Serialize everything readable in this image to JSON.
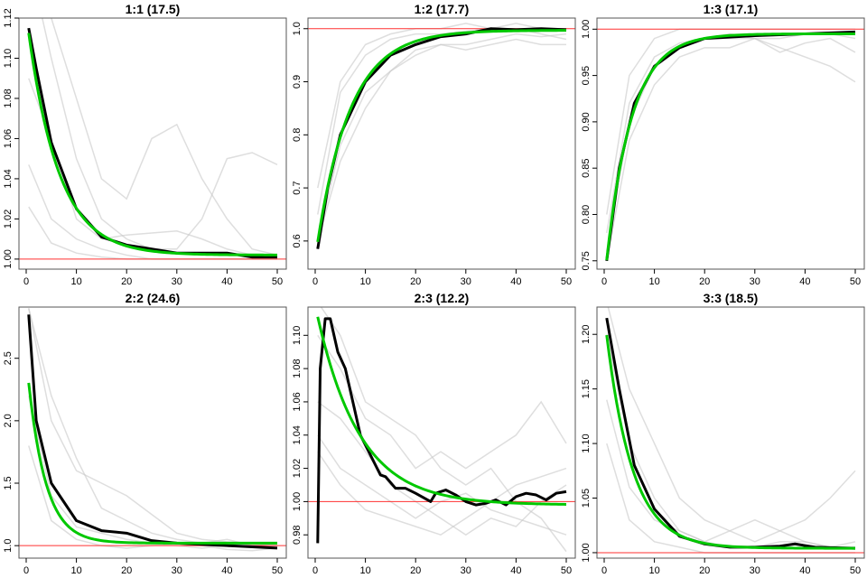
{
  "chart_data": [
    {
      "type": "line",
      "title": "1:1 (17.5)",
      "xlim": [
        0,
        50
      ],
      "ylim": [
        0.995,
        1.12
      ],
      "xticks": [
        "0",
        "10",
        "20",
        "30",
        "40",
        "50"
      ],
      "yticks": [
        "1.00",
        "1.02",
        "1.04",
        "1.06",
        "1.08",
        "1.10",
        "1.12"
      ],
      "ytick_values": [
        1.0,
        1.02,
        1.04,
        1.06,
        1.08,
        1.1,
        1.12
      ],
      "reference": 1.0,
      "mean": {
        "x": [
          0.5,
          2,
          5,
          10,
          15,
          20,
          25,
          30,
          35,
          40,
          45,
          50
        ],
        "y": [
          1.115,
          1.095,
          1.058,
          1.025,
          1.011,
          1.007,
          1.005,
          1.003,
          1.003,
          1.003,
          1.001,
          1.001
        ]
      },
      "fit": {
        "asymptote": 1.002,
        "amplitude": 0.12,
        "tau": 6.1
      },
      "samples": [
        [
          1.026,
          1.008,
          1.003,
          1.001,
          1.0,
          1.0,
          1.0,
          1.0,
          1.0,
          1.0,
          1.0
        ],
        [
          1.047,
          1.02,
          1.01,
          1.005,
          1.002,
          1.0,
          1.0,
          1.0,
          1.0,
          1.0,
          1.0
        ],
        [
          1.15,
          1.12,
          1.08,
          1.04,
          1.03,
          1.06,
          1.067,
          1.04,
          1.02,
          1.005,
          1.002
        ],
        [
          1.15,
          1.1,
          1.05,
          1.02,
          1.01,
          1.005,
          1.005,
          1.02,
          1.05,
          1.053,
          1.047
        ],
        [
          1.09,
          1.06,
          1.02,
          1.01,
          1.012,
          1.013,
          1.014,
          1.01,
          1.005,
          1.002,
          1.001
        ]
      ]
    },
    {
      "type": "line",
      "title": "1:2 (17.7)",
      "xlim": [
        0,
        50
      ],
      "ylim": [
        0.547,
        1.02
      ],
      "xticks": [
        "0",
        "10",
        "20",
        "30",
        "40",
        "50"
      ],
      "yticks": [
        "0.6",
        "0.7",
        "0.8",
        "0.9",
        "1.0"
      ],
      "ytick_values": [
        0.6,
        0.7,
        0.8,
        0.9,
        1.0
      ],
      "reference": 1.0,
      "mean": {
        "x": [
          0.5,
          2.5,
          5,
          10,
          15,
          20,
          25,
          30,
          35,
          40,
          45,
          50
        ],
        "y": [
          0.585,
          0.7,
          0.8,
          0.9,
          0.95,
          0.97,
          0.985,
          0.99,
          1.0,
          0.998,
          1.0,
          0.998
        ]
      },
      "fit": {
        "asymptote": 0.997,
        "amplitude": -0.43,
        "tau": 6.6
      },
      "samples": [
        [
          0.65,
          0.88,
          0.95,
          0.98,
          0.99,
          0.99,
          0.995,
          1.0,
          1.0,
          0.99,
          0.98
        ],
        [
          0.6,
          0.78,
          0.88,
          0.92,
          0.95,
          0.97,
          0.97,
          0.98,
          0.99,
          0.985,
          0.99
        ],
        [
          0.7,
          0.9,
          0.97,
          0.99,
          1.0,
          1.0,
          1.01,
          1.0,
          1.01,
          1.0,
          1.0
        ],
        [
          0.6,
          0.75,
          0.85,
          0.92,
          0.96,
          0.97,
          0.96,
          0.97,
          0.98,
          0.97,
          0.97
        ]
      ]
    },
    {
      "type": "line",
      "title": "1:3 (17.1)",
      "xlim": [
        0,
        50
      ],
      "ylim": [
        0.741,
        1.012
      ],
      "xticks": [
        "0",
        "10",
        "20",
        "30",
        "40",
        "50"
      ],
      "yticks": [
        "0.75",
        "0.80",
        "0.85",
        "0.90",
        "0.95",
        "1.00"
      ],
      "ytick_values": [
        0.75,
        0.8,
        0.85,
        0.9,
        0.95,
        1.0
      ],
      "reference": 1.0,
      "mean": {
        "x": [
          0.5,
          3,
          6,
          10,
          15,
          20,
          30,
          40,
          50
        ],
        "y": [
          0.75,
          0.85,
          0.92,
          0.96,
          0.98,
          0.99,
          0.993,
          0.995,
          0.997
        ]
      },
      "fit": {
        "asymptote": 0.995,
        "amplitude": -0.27,
        "tau": 5.0
      },
      "samples": [
        [
          0.76,
          0.9,
          0.96,
          0.98,
          0.99,
          0.99,
          0.99,
          0.98,
          0.97,
          0.96,
          0.943
        ],
        [
          0.8,
          0.95,
          0.99,
          1.0,
          1.0,
          1.0,
          1.0,
          1.0,
          1.0,
          1.0,
          1.0
        ],
        [
          0.75,
          0.88,
          0.94,
          0.97,
          0.98,
          0.98,
          0.99,
          0.975,
          0.985,
          0.99,
          0.975
        ],
        [
          0.78,
          0.92,
          0.97,
          0.985,
          0.99,
          0.995,
          0.99,
          0.99,
          0.995,
          0.995,
          0.99
        ]
      ]
    },
    {
      "type": "line",
      "title": "2:2 (24.6)",
      "xlim": [
        0,
        50
      ],
      "ylim": [
        0.9,
        2.91
      ],
      "xticks": [
        "0",
        "10",
        "20",
        "30",
        "40",
        "50"
      ],
      "yticks": [
        "1.0",
        "1.5",
        "2.0",
        "2.5"
      ],
      "ytick_values": [
        1.0,
        1.5,
        2.0,
        2.5
      ],
      "reference": 1.0,
      "mean": {
        "x": [
          0.5,
          2,
          5,
          10,
          15,
          20,
          25,
          30,
          35,
          40,
          45,
          50
        ],
        "y": [
          2.85,
          2.0,
          1.5,
          1.2,
          1.12,
          1.1,
          1.04,
          1.02,
          1.01,
          1.0,
          0.99,
          0.98
        ]
      },
      "fit": {
        "asymptote": 1.02,
        "amplitude": 1.48,
        "tau": 3.5
      },
      "samples": [
        [
          2.9,
          2.0,
          1.6,
          1.5,
          1.4,
          1.25,
          1.1,
          1.05,
          1.03,
          1.02,
          1.0
        ],
        [
          2.2,
          1.4,
          1.15,
          1.1,
          1.05,
          1.02,
          1.0,
          0.98,
          1.0,
          1.01,
          1.0
        ],
        [
          2.9,
          2.2,
          1.7,
          1.3,
          1.2,
          1.1,
          1.05,
          1.02,
          1.05,
          1.0,
          1.0
        ],
        [
          1.8,
          1.2,
          1.05,
          1.0,
          0.98,
          1.0,
          1.02,
          1.0,
          0.97,
          0.96,
          0.98
        ]
      ]
    },
    {
      "type": "line",
      "title": "2:3 (12.2)",
      "xlim": [
        0,
        50
      ],
      "ylim": [
        0.966,
        1.117
      ],
      "xticks": [
        "0",
        "10",
        "20",
        "30",
        "40",
        "50"
      ],
      "yticks": [
        "0.98",
        "1.00",
        "1.02",
        "1.04",
        "1.06",
        "1.08",
        "1.10"
      ],
      "ytick_values": [
        0.98,
        1.0,
        1.02,
        1.04,
        1.06,
        1.08,
        1.1
      ],
      "reference": 1.0,
      "mean": {
        "x": [
          0.5,
          1,
          2,
          3,
          4.5,
          6,
          9,
          11,
          13,
          14,
          16,
          18,
          20,
          23,
          24,
          26,
          28,
          30,
          32,
          34,
          36,
          38,
          40,
          42,
          44,
          46,
          48,
          50
        ],
        "y": [
          0.975,
          1.08,
          1.11,
          1.11,
          1.09,
          1.08,
          1.04,
          1.028,
          1.016,
          1.015,
          1.008,
          1.008,
          1.005,
          1.0,
          1.005,
          1.007,
          1.004,
          1.0,
          0.998,
          0.999,
          1.001,
          0.998,
          1.003,
          1.005,
          1.004,
          1.001,
          1.005,
          1.006
        ]
      },
      "fit": {
        "asymptote": 0.998,
        "amplitude": 0.12,
        "tau": 8.5
      },
      "samples": [
        [
          1.06,
          1.05,
          1.03,
          1.01,
          1.0,
          0.99,
          0.98,
          0.99,
          0.985,
          1.0,
          1.01
        ],
        [
          1.04,
          1.02,
          1.01,
          1.0,
          0.99,
          1.0,
          1.005,
          0.995,
          0.99,
          0.985,
          0.98
        ],
        [
          1.1,
          1.08,
          1.05,
          1.04,
          1.02,
          1.03,
          1.02,
          1.03,
          1.04,
          1.06,
          1.035
        ],
        [
          1.03,
          1.01,
          0.995,
          0.99,
          0.985,
          0.98,
          0.99,
          1.0,
          1.01,
          1.015,
          1.02
        ],
        [
          1.12,
          1.1,
          1.06,
          1.05,
          1.04,
          1.02,
          1.01,
          1.02,
          1.0,
          0.99,
          0.97
        ]
      ]
    },
    {
      "type": "line",
      "title": "3:3 (18.5)",
      "xlim": [
        0,
        50
      ],
      "ylim": [
        0.995,
        1.225
      ],
      "xticks": [
        "0",
        "10",
        "20",
        "30",
        "40",
        "50"
      ],
      "yticks": [
        "1.00",
        "1.05",
        "1.10",
        "1.15",
        "1.20"
      ],
      "ytick_values": [
        1.0,
        1.05,
        1.1,
        1.15,
        1.2
      ],
      "reference": 1.0,
      "mean": {
        "x": [
          0.5,
          3,
          6,
          10,
          15,
          20,
          25,
          30,
          35,
          38,
          42,
          50
        ],
        "y": [
          1.215,
          1.15,
          1.08,
          1.04,
          1.015,
          1.008,
          1.005,
          1.005,
          1.006,
          1.008,
          1.005,
          1.004
        ]
      },
      "fit": {
        "asymptote": 1.004,
        "amplitude": 0.215,
        "tau": 5.2
      },
      "samples": [
        [
          1.14,
          1.06,
          1.03,
          1.02,
          1.01,
          1.005,
          1.005,
          1.01,
          1.01,
          1.005,
          1.01
        ],
        [
          1.23,
          1.15,
          1.1,
          1.05,
          1.03,
          1.02,
          1.01,
          1.02,
          1.03,
          1.05,
          1.075
        ],
        [
          1.2,
          1.1,
          1.05,
          1.02,
          1.01,
          1.02,
          1.03,
          1.02,
          1.01,
          1.005,
          1.005
        ],
        [
          1.1,
          1.03,
          1.01,
          1.005,
          1.0,
          1.0,
          1.0,
          1.0,
          1.0,
          1.0,
          1.0
        ]
      ]
    }
  ],
  "colors": {
    "mean": "#000000",
    "fit": "#00c800",
    "reference": "#ff3030",
    "samples": "#c8c8c8"
  }
}
